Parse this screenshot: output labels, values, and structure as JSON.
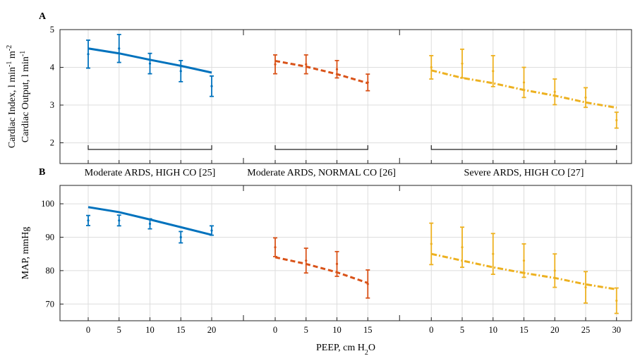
{
  "chart_data": [
    {
      "type": "errorbar-line",
      "label": "A",
      "ylabel": [
        {
          "parts": [
            "Cardiac Index, l min",
            "-1",
            " m",
            "-2"
          ],
          "script": "sup"
        },
        {
          "parts": [
            "Cardiac Output, l min",
            "-1"
          ],
          "script": "sup"
        }
      ],
      "ylim": [
        1.45,
        5
      ],
      "yticks": [
        2,
        3,
        4,
        5
      ],
      "grid": true,
      "xtick_labels": false,
      "series": [
        {
          "name": "Moderate ARDS, HIGH CO [25]",
          "color": "#0072BD",
          "linestyle": "solid",
          "x": [
            0,
            5,
            10,
            15,
            20
          ],
          "values": [
            4.35,
            4.5,
            4.1,
            3.9,
            3.5
          ],
          "errors": [
            0.37,
            0.37,
            0.27,
            0.28,
            0.27
          ],
          "model": [
            4.5,
            4.37,
            4.2,
            4.04,
            3.86
          ]
        },
        {
          "name": "Moderate ARDS, NORMAL CO [26]",
          "color": "#D95319",
          "linestyle": "dashed",
          "x": [
            0,
            5,
            10,
            15
          ],
          "values": [
            4.08,
            4.08,
            3.95,
            3.6
          ],
          "errors": [
            0.25,
            0.25,
            0.23,
            0.22
          ],
          "model": [
            4.17,
            4.02,
            3.82,
            3.58
          ]
        },
        {
          "name": "Severe ARDS, HIGH CO [27]",
          "color": "#EDB120",
          "linestyle": "dashdot",
          "x": [
            0,
            5,
            10,
            15,
            20,
            25,
            30
          ],
          "values": [
            4.0,
            4.1,
            3.9,
            3.6,
            3.35,
            3.2,
            2.6
          ],
          "errors": [
            0.31,
            0.38,
            0.41,
            0.4,
            0.34,
            0.26,
            0.21
          ],
          "model": [
            3.92,
            3.72,
            3.58,
            3.4,
            3.25,
            3.07,
            2.93
          ]
        }
      ]
    },
    {
      "type": "errorbar-line",
      "label": "B",
      "ylabel": [
        {
          "parts": [
            "MAP, mmHg"
          ],
          "script": "sup"
        }
      ],
      "xlabel": {
        "parts": [
          "PEEP, cm H",
          "2",
          "O"
        ],
        "script": "sub"
      },
      "ylim": [
        65,
        105.5
      ],
      "yticks": [
        70,
        80,
        90,
        100
      ],
      "grid": true,
      "xtick_labels": true,
      "series": [
        {
          "color": "#0072BD",
          "linestyle": "solid",
          "x": [
            0,
            5,
            10,
            15,
            20
          ],
          "values": [
            95,
            95,
            94,
            90,
            92
          ],
          "errors": [
            1.5,
            1.6,
            1.5,
            1.7,
            1.4
          ],
          "model": [
            99,
            97.5,
            95.3,
            93,
            90.7
          ]
        },
        {
          "color": "#D95319",
          "linestyle": "dashed",
          "x": [
            0,
            5,
            10,
            15
          ],
          "values": [
            87,
            83,
            82,
            76
          ],
          "errors": [
            2.8,
            3.7,
            3.7,
            4.2
          ],
          "model": [
            84,
            82,
            79.5,
            76.3
          ]
        },
        {
          "color": "#EDB120",
          "linestyle": "dashdot",
          "x": [
            0,
            5,
            10,
            15,
            20,
            25,
            30
          ],
          "values": [
            88,
            87,
            85,
            83,
            80,
            75,
            71
          ],
          "errors": [
            6.2,
            6,
            6.1,
            5,
            5,
            4.7,
            3.8
          ],
          "model": [
            85,
            83,
            81,
            79.3,
            77.8,
            75.9,
            74.4
          ]
        }
      ]
    }
  ]
}
